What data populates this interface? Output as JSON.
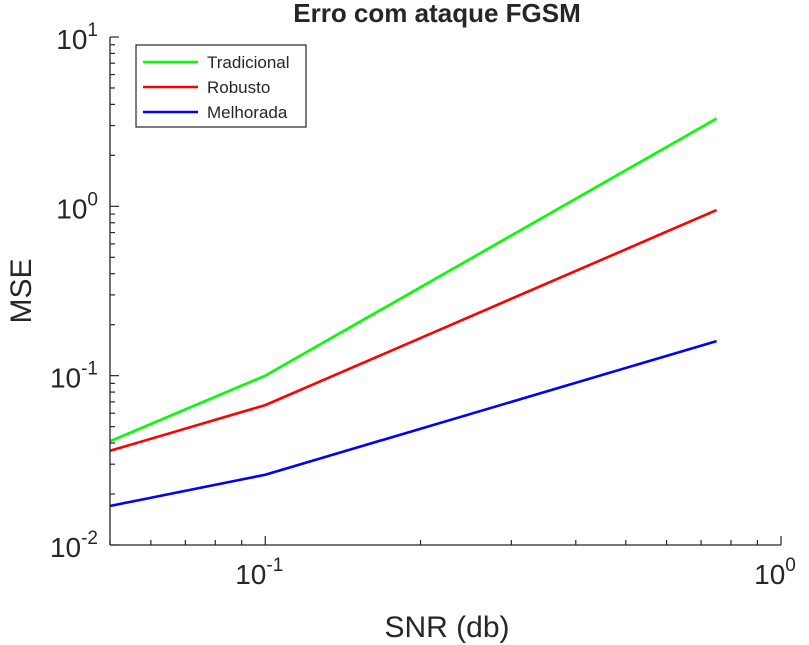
{
  "chart_data": {
    "type": "line",
    "title": "Erro com ataque FGSM",
    "xlabel": "SNR (db)",
    "ylabel": "MSE",
    "x_scale": "log",
    "y_scale": "log",
    "xlim": [
      0.05,
      1.0
    ],
    "ylim": [
      0.01,
      10
    ],
    "x_ticks": [
      {
        "value": 0.1,
        "base": "10",
        "exp": "-1"
      },
      {
        "value": 1.0,
        "base": "10",
        "exp": "0"
      }
    ],
    "y_ticks": [
      {
        "value": 0.01,
        "base": "10",
        "exp": "-2"
      },
      {
        "value": 0.1,
        "base": "10",
        "exp": "-1"
      },
      {
        "value": 1,
        "base": "10",
        "exp": "0"
      },
      {
        "value": 10,
        "base": "10",
        "exp": "1"
      }
    ],
    "grid": false,
    "legend_position": "top-left",
    "series": [
      {
        "name": "Tradicional",
        "color": "#00ff00",
        "x": [
          0.05,
          0.1,
          0.75
        ],
        "y": [
          0.041,
          0.1,
          3.3
        ]
      },
      {
        "name": "Robusto",
        "color": "#ff0000",
        "x": [
          0.05,
          0.1,
          0.75
        ],
        "y": [
          0.036,
          0.067,
          0.95
        ]
      },
      {
        "name": "Melhorada",
        "color": "#0000ff",
        "x": [
          0.05,
          0.1,
          0.75
        ],
        "y": [
          0.017,
          0.026,
          0.16
        ]
      }
    ]
  }
}
